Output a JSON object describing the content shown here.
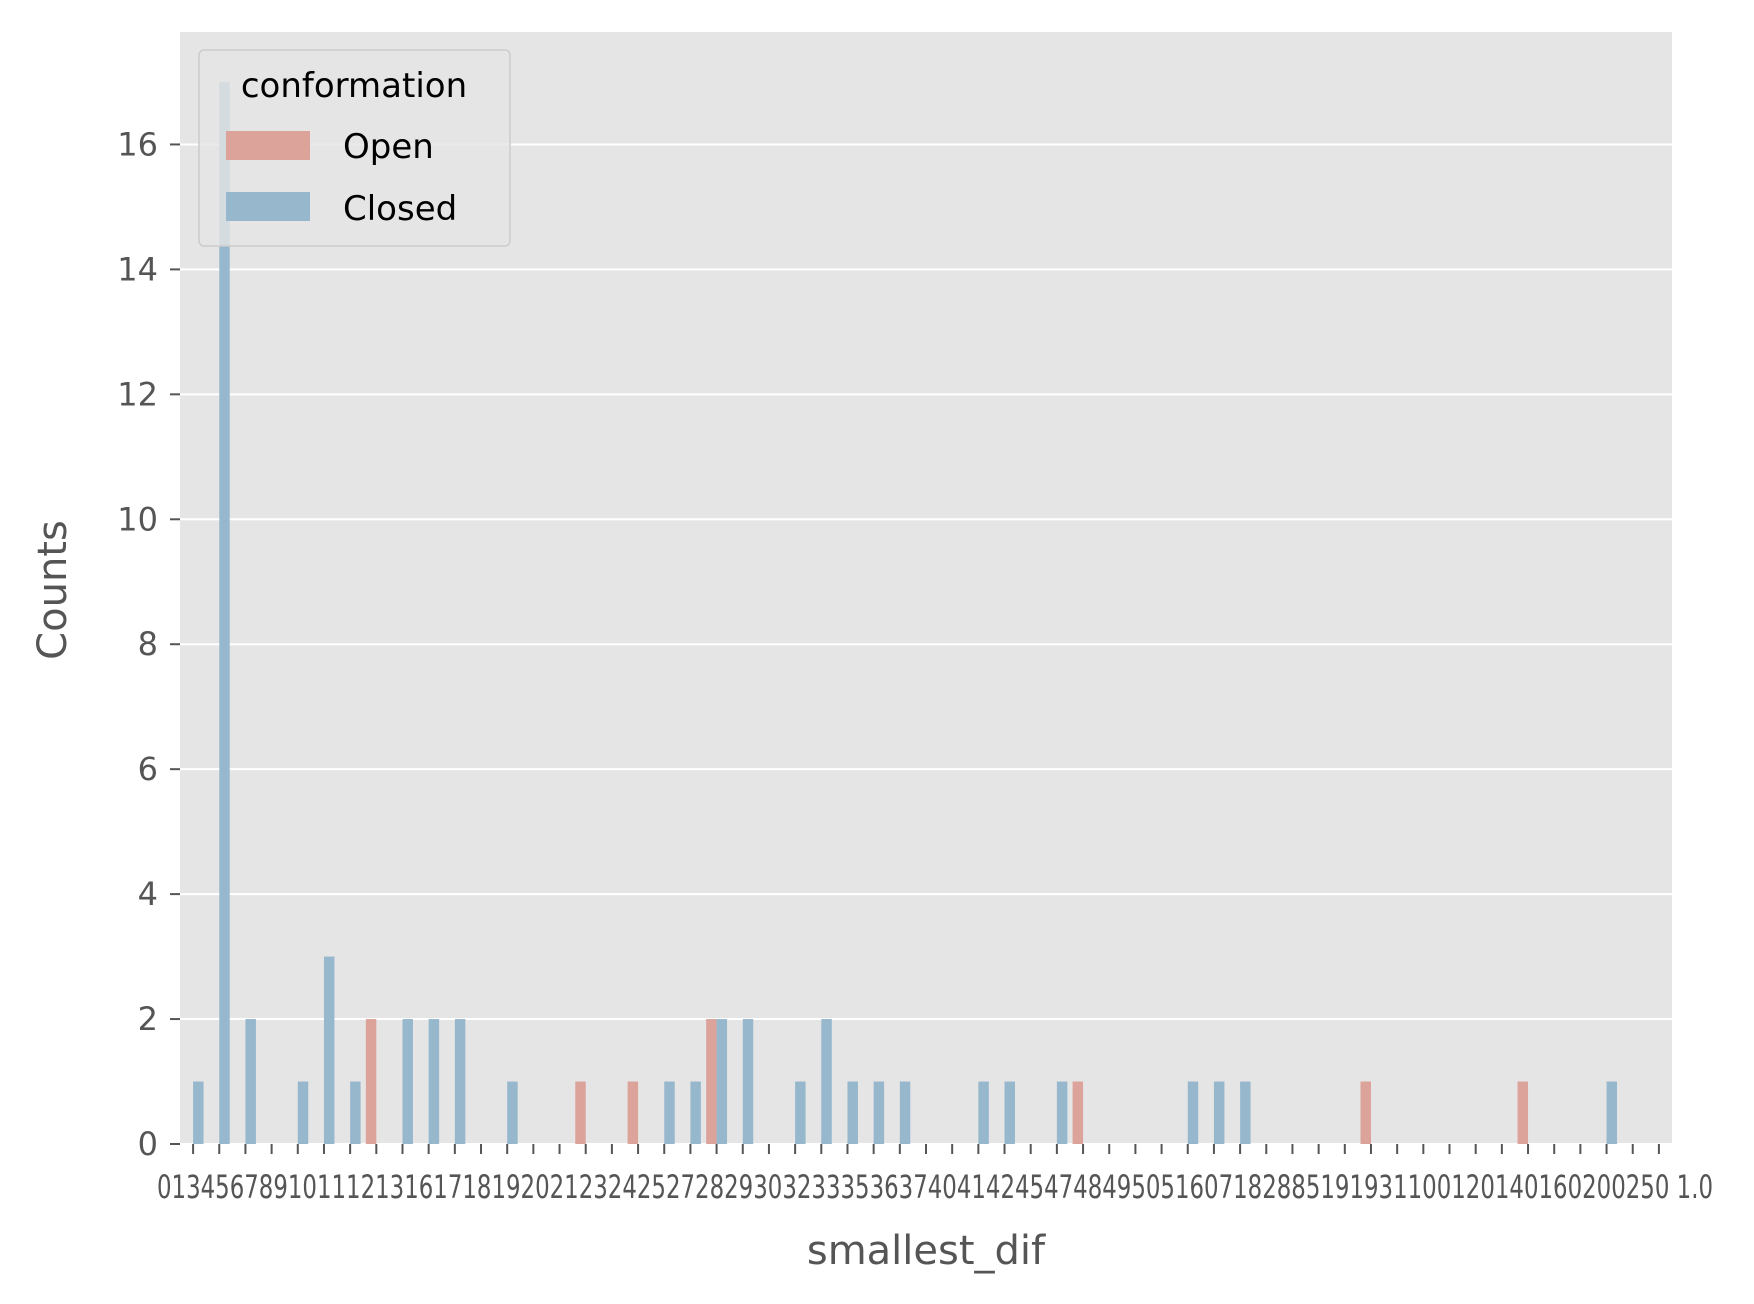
{
  "chart_data": {
    "type": "bar",
    "xlabel": "smallest_dif",
    "ylabel": "Counts",
    "ylim": [
      0,
      17.8
    ],
    "y_ticks": [
      0,
      2,
      4,
      6,
      8,
      10,
      12,
      14,
      16
    ],
    "grid": true,
    "x_tick_labels_text": "01345678910111213161718192021232425272829303233353637404142454748495051607182885191931100120140160200250 1.0",
    "legend": {
      "title": "conformation",
      "placement": "upper-left",
      "entries": [
        "Open",
        "Closed"
      ]
    },
    "colors": {
      "background": "#e5e5e5",
      "grid": "#ffffff",
      "Open": "#dca39b",
      "Closed": "#97b7cd"
    },
    "num_categories": 57,
    "series": [
      {
        "name": "Open",
        "points": [
          {
            "index": 7,
            "value": 2
          },
          {
            "index": 15,
            "value": 1
          },
          {
            "index": 17,
            "value": 1
          },
          {
            "index": 20,
            "value": 2
          },
          {
            "index": 34,
            "value": 1
          },
          {
            "index": 45,
            "value": 1
          },
          {
            "index": 51,
            "value": 1
          }
        ]
      },
      {
        "name": "Closed",
        "points": [
          {
            "index": 0,
            "value": 1
          },
          {
            "index": 1,
            "value": 17
          },
          {
            "index": 2,
            "value": 2
          },
          {
            "index": 4,
            "value": 1
          },
          {
            "index": 5,
            "value": 3
          },
          {
            "index": 6,
            "value": 1
          },
          {
            "index": 8,
            "value": 2
          },
          {
            "index": 9,
            "value": 2
          },
          {
            "index": 10,
            "value": 2
          },
          {
            "index": 12,
            "value": 1
          },
          {
            "index": 18,
            "value": 1
          },
          {
            "index": 19,
            "value": 1
          },
          {
            "index": 20,
            "value": 2
          },
          {
            "index": 21,
            "value": 2
          },
          {
            "index": 23,
            "value": 1
          },
          {
            "index": 24,
            "value": 2
          },
          {
            "index": 25,
            "value": 1
          },
          {
            "index": 26,
            "value": 1
          },
          {
            "index": 27,
            "value": 1
          },
          {
            "index": 30,
            "value": 1
          },
          {
            "index": 31,
            "value": 1
          },
          {
            "index": 33,
            "value": 1
          },
          {
            "index": 38,
            "value": 1
          },
          {
            "index": 39,
            "value": 1
          },
          {
            "index": 40,
            "value": 1
          },
          {
            "index": 54,
            "value": 1
          }
        ]
      }
    ]
  }
}
